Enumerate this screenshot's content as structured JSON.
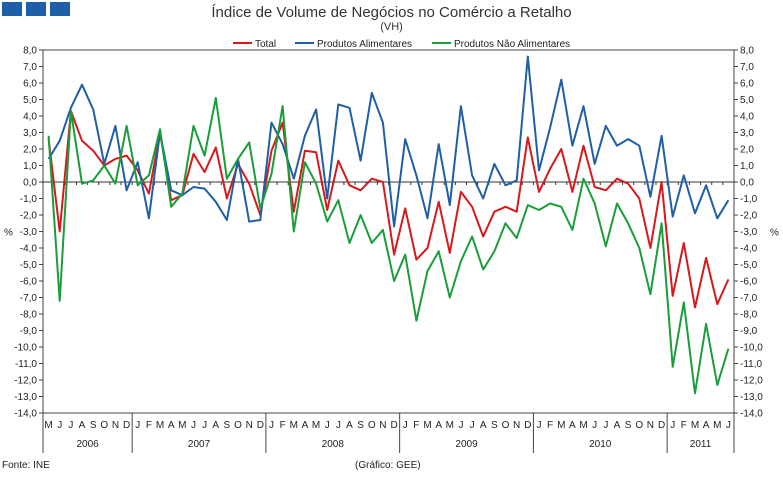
{
  "chart_data": {
    "type": "line",
    "title": "Índice de Volume de Negócios no Comércio a Retalho",
    "subtitle": "(VH)",
    "ylabel_left": "%",
    "ylabel_right": "%",
    "ylim": [
      -14,
      8
    ],
    "ytick_step": 1,
    "legend_position": "top",
    "month_labels": [
      "M",
      "J",
      "J",
      "A",
      "S",
      "O",
      "N",
      "D",
      "J",
      "F",
      "M",
      "A",
      "M",
      "J",
      "J",
      "A",
      "S",
      "O",
      "N",
      "D",
      "J",
      "F",
      "M",
      "A",
      "M",
      "J",
      "J",
      "A",
      "S",
      "O",
      "N",
      "D",
      "J",
      "F",
      "M",
      "A",
      "M",
      "J",
      "J",
      "A",
      "S",
      "O",
      "N",
      "D",
      "J",
      "F",
      "M",
      "A",
      "M",
      "J",
      "J",
      "A",
      "S",
      "O",
      "N",
      "D",
      "J",
      "F",
      "M",
      "A",
      "M",
      "J"
    ],
    "years": [
      {
        "label": "2006",
        "start": 0,
        "count": 8
      },
      {
        "label": "2007",
        "start": 8,
        "count": 12
      },
      {
        "label": "2008",
        "start": 20,
        "count": 12
      },
      {
        "label": "2009",
        "start": 32,
        "count": 12
      },
      {
        "label": "2010",
        "start": 44,
        "count": 12
      },
      {
        "label": "2011",
        "start": 56,
        "count": 6
      }
    ],
    "series": [
      {
        "name": "Total",
        "color": "#d7191c",
        "values": [
          2.6,
          -3.0,
          4.3,
          2.5,
          1.9,
          1.0,
          1.4,
          1.6,
          0.7,
          -0.7,
          3.0,
          -1.1,
          -0.8,
          1.7,
          0.6,
          2.1,
          -1.0,
          1.1,
          -0.1,
          -2.0,
          1.9,
          3.6,
          -1.8,
          1.9,
          1.8,
          -1.7,
          1.3,
          -0.2,
          -0.5,
          0.2,
          0.0,
          -4.4,
          -1.6,
          -4.7,
          -4.0,
          -1.2,
          -4.3,
          -0.6,
          -1.5,
          -3.3,
          -1.8,
          -1.5,
          -1.8,
          2.7,
          -0.6,
          0.8,
          2.0,
          -0.6,
          2.2,
          -0.3,
          -0.5,
          0.2,
          -0.1,
          -1.0,
          -4.0,
          0.0,
          -6.9,
          -3.7,
          -7.6,
          -4.6,
          -7.4,
          -5.9
        ]
      },
      {
        "name": "Produtos Alimentares",
        "color": "#1f5fa8",
        "values": [
          1.4,
          2.5,
          4.5,
          5.9,
          4.4,
          1.1,
          3.4,
          -0.5,
          1.2,
          -2.2,
          3.0,
          -0.5,
          -0.8,
          -0.3,
          -0.4,
          -1.2,
          -2.3,
          1.4,
          -2.4,
          -2.3,
          3.6,
          2.3,
          0.2,
          2.8,
          4.4,
          -1.0,
          4.7,
          4.5,
          1.3,
          5.4,
          3.6,
          -2.7,
          2.6,
          0.4,
          -2.2,
          2.3,
          -1.4,
          4.6,
          0.4,
          -1.0,
          1.1,
          -0.2,
          0.1,
          7.6,
          0.7,
          3.3,
          6.2,
          2.2,
          4.6,
          1.1,
          3.4,
          2.2,
          2.6,
          2.2,
          -0.9,
          2.8,
          -2.1,
          0.4,
          -1.9,
          -0.2,
          -2.2,
          -1.1
        ]
      },
      {
        "name": "Produtos Não Alimentares",
        "color": "#1a9e3a",
        "values": [
          2.8,
          -7.2,
          4.3,
          -0.1,
          0.1,
          1.0,
          -0.1,
          3.4,
          -0.2,
          0.4,
          3.2,
          -1.5,
          -0.7,
          3.4,
          1.6,
          5.1,
          0.2,
          1.4,
          2.4,
          -1.6,
          0.5,
          4.6,
          -3.0,
          1.2,
          -0.1,
          -2.4,
          -1.1,
          -3.7,
          -2.0,
          -3.7,
          -2.9,
          -6.0,
          -4.4,
          -8.4,
          -5.4,
          -4.2,
          -7.0,
          -4.8,
          -3.3,
          -5.3,
          -4.2,
          -2.5,
          -3.4,
          -1.4,
          -1.7,
          -1.3,
          -1.5,
          -2.9,
          0.2,
          -1.3,
          -3.9,
          -1.3,
          -2.5,
          -4.0,
          -6.8,
          -2.5,
          -11.2,
          -7.3,
          -12.8,
          -8.6,
          -12.3,
          -10.1
        ]
      }
    ]
  },
  "source_label": "Fonte: INE",
  "graphic_credit": "(Gráfico: GEE)"
}
